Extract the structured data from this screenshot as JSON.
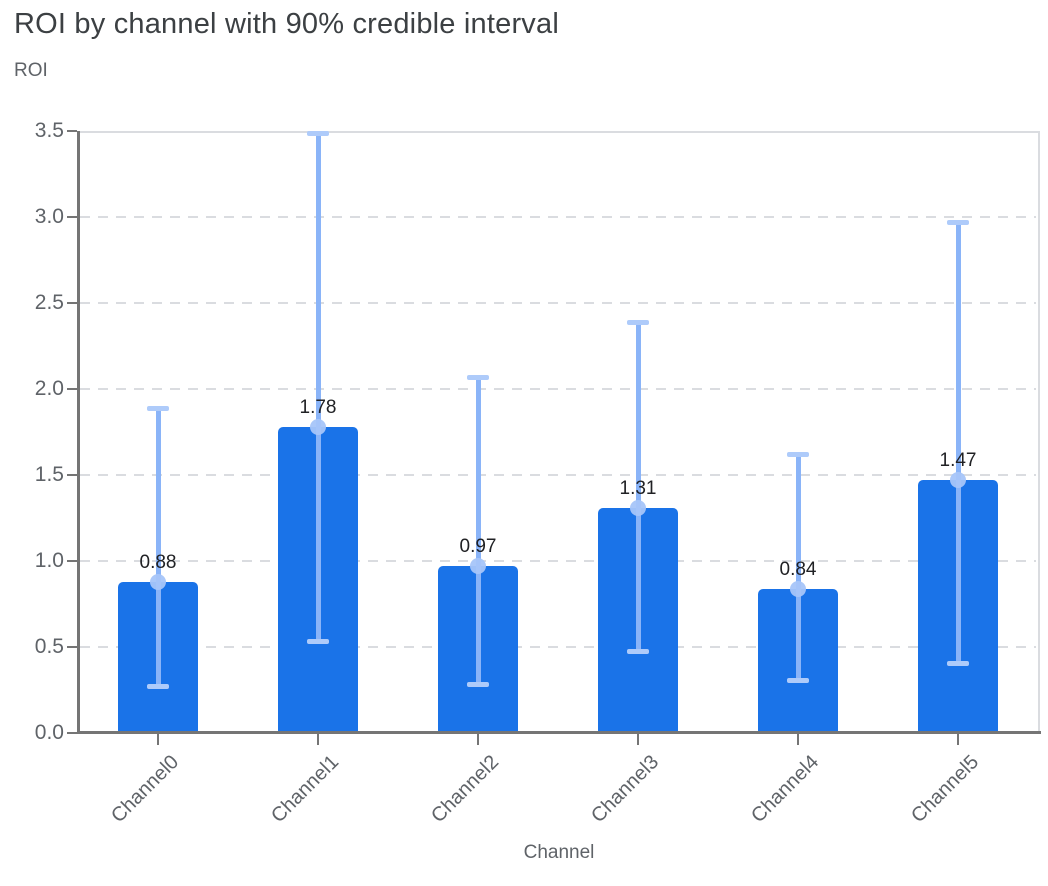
{
  "chart_data": {
    "type": "bar",
    "title": "ROI by channel with 90% credible interval",
    "ylabel": "ROI",
    "xlabel": "Channel",
    "categories": [
      "Channel0",
      "Channel1",
      "Channel2",
      "Channel3",
      "Channel4",
      "Channel5"
    ],
    "values": [
      0.88,
      1.78,
      0.97,
      1.31,
      0.84,
      1.47
    ],
    "value_labels": [
      "0.88",
      "1.78",
      "0.97",
      "1.31",
      "0.84",
      "1.47"
    ],
    "ci_lower": [
      0.27,
      0.53,
      0.28,
      0.47,
      0.3,
      0.4
    ],
    "ci_upper": [
      1.89,
      3.49,
      2.07,
      2.39,
      1.62,
      2.97
    ],
    "interval_note": "90% credible interval",
    "ylim": [
      0,
      3.5
    ],
    "yticks": [
      "0.0",
      "0.5",
      "1.0",
      "1.5",
      "2.0",
      "2.5",
      "3.0",
      "3.5"
    ],
    "grid": "horizontal dashed",
    "legend": "none"
  },
  "colors": {
    "bar": "#1a73e8",
    "error_stem": "#8ab4f8",
    "error_cap": "#aecbfa",
    "mean_marker": "#a6c5f9",
    "grid": "#dadce0",
    "axis": "#757575",
    "title_text": "#3c4043",
    "muted_text": "#5f6368",
    "value_text": "#202124",
    "background": "#ffffff"
  }
}
